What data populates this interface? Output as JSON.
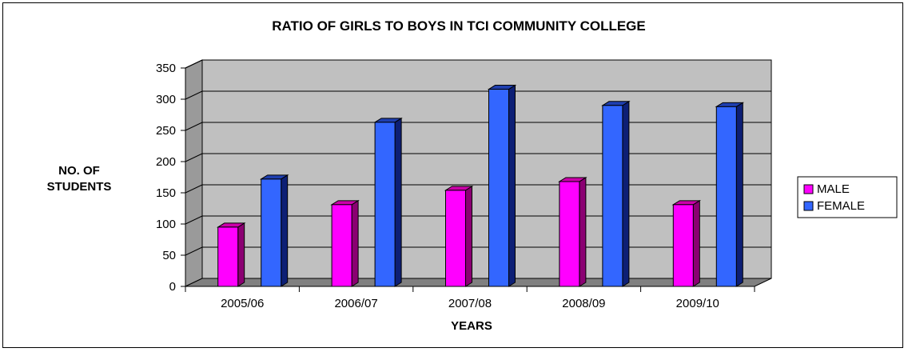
{
  "chart_data": {
    "type": "bar",
    "title": "RATIO OF GIRLS TO BOYS IN TCI COMMUNITY COLLEGE",
    "ylabel_lines": [
      "NO. OF",
      "STUDENTS"
    ],
    "xlabel": "YEARS",
    "categories": [
      "2005/06",
      "2006/07",
      "2007/08",
      "2008/09",
      "2009/10"
    ],
    "series": [
      {
        "name": "MALE",
        "values": [
          95,
          131,
          154,
          168,
          131
        ],
        "color": "#ff00ff",
        "side_color": "#8b0072",
        "top_color": "#cc00aa"
      },
      {
        "name": "FEMALE",
        "values": [
          172,
          263,
          316,
          290,
          288
        ],
        "color": "#3366ff",
        "side_color": "#0d1f75",
        "top_color": "#1f3fb0"
      }
    ],
    "ylim": [
      0,
      350
    ],
    "yticks": [
      0,
      50,
      100,
      150,
      200,
      250,
      300,
      350
    ],
    "grid": true,
    "legend_position": "right",
    "plot_background": "#c0c0c0"
  }
}
